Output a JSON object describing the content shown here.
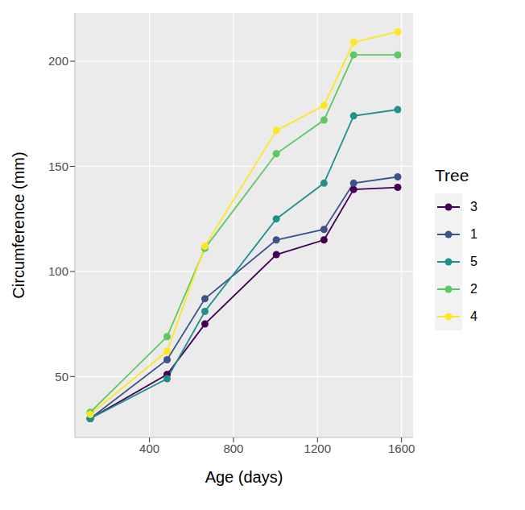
{
  "chart_data": {
    "type": "line",
    "x_label": "Age (days)",
    "y_label": "Circumference (mm)",
    "legend_title": "Tree",
    "x": [
      118,
      484,
      664,
      1004,
      1231,
      1372,
      1582
    ],
    "series": [
      {
        "name": "3",
        "color": "#440154",
        "values": [
          30,
          51,
          75,
          108,
          115,
          139,
          140
        ]
      },
      {
        "name": "1",
        "color": "#3B528B",
        "values": [
          30,
          58,
          87,
          115,
          120,
          142,
          145
        ]
      },
      {
        "name": "5",
        "color": "#21908C",
        "values": [
          30,
          49,
          81,
          125,
          142,
          174,
          177
        ]
      },
      {
        "name": "2",
        "color": "#5DC863",
        "values": [
          33,
          69,
          111,
          156,
          172,
          203,
          203
        ]
      },
      {
        "name": "4",
        "color": "#FDE725",
        "values": [
          32,
          62,
          112,
          167,
          179,
          209,
          214
        ]
      }
    ],
    "xlim": [
      45,
      1655
    ],
    "ylim": [
      21,
      223
    ],
    "xticks": [
      400,
      800,
      1200,
      1600
    ],
    "yticks": [
      50,
      100,
      150,
      200
    ],
    "grid": true,
    "marker": "circle",
    "legend": "right"
  }
}
